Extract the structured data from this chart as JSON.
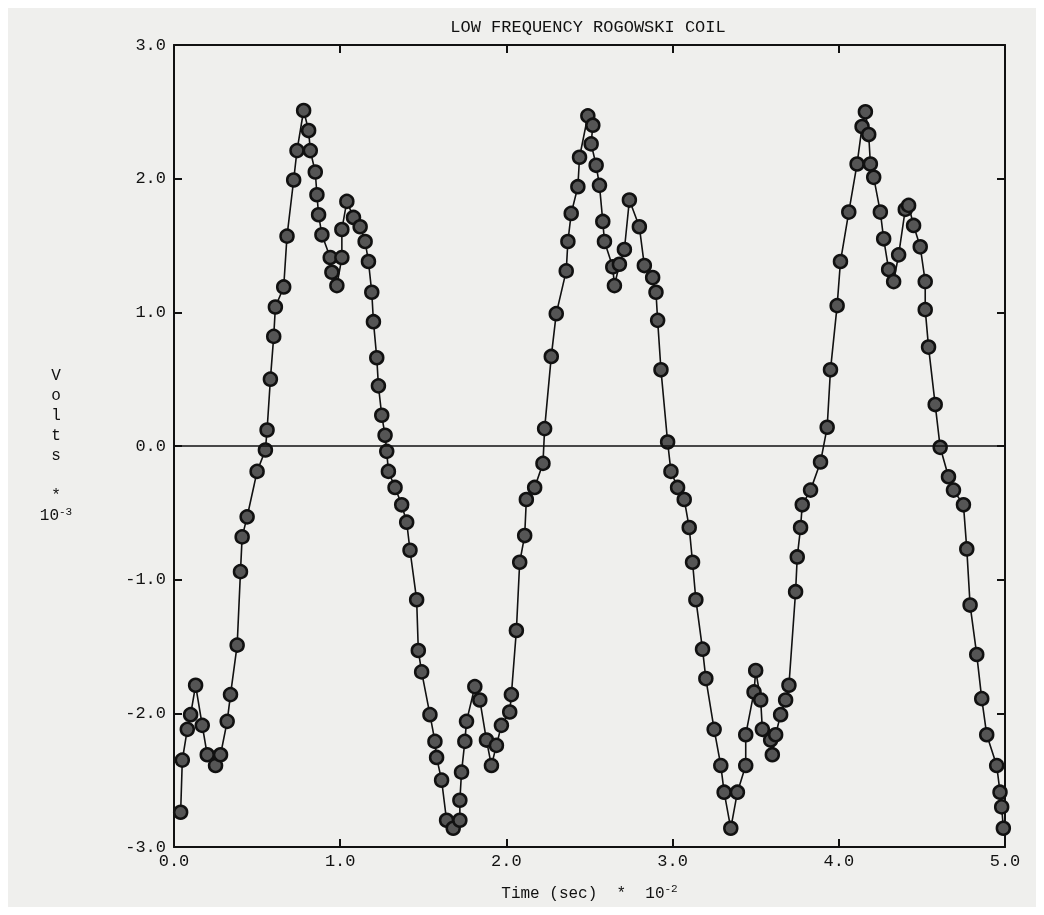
{
  "chart_data": {
    "type": "line",
    "title": "LOW FREQUENCY ROGOWSKI COIL",
    "xlabel": "Time (sec)  *  10$^{-2}$",
    "ylabel": "Volts  *  10$^{-3}$",
    "series": [
      {
        "color": "#111111",
        "x": [
          0.04,
          0.05,
          0.08,
          0.1,
          0.13,
          0.17,
          0.2,
          0.25,
          0.28,
          0.32,
          0.34,
          0.38,
          0.4,
          0.41,
          0.44,
          0.5,
          0.55,
          0.56,
          0.58,
          0.6,
          0.61,
          0.66,
          0.68,
          0.72,
          0.74,
          0.78,
          0.81,
          0.82,
          0.85,
          0.86,
          0.87,
          0.89,
          0.94,
          0.95,
          0.98,
          1.01,
          1.01,
          1.04,
          1.08,
          1.12,
          1.15,
          1.17,
          1.19,
          1.2,
          1.22,
          1.23,
          1.25,
          1.27,
          1.28,
          1.29,
          1.33,
          1.37,
          1.4,
          1.42,
          1.46,
          1.47,
          1.49,
          1.54,
          1.57,
          1.58,
          1.61,
          1.64,
          1.68,
          1.72,
          1.72,
          1.73,
          1.75,
          1.76,
          1.81,
          1.84,
          1.88,
          1.91,
          1.94,
          1.97,
          2.02,
          2.03,
          2.06,
          2.08,
          2.11,
          2.12,
          2.17,
          2.22,
          2.23,
          2.27,
          2.3,
          2.36,
          2.37,
          2.39,
          2.43,
          2.44,
          2.49,
          2.52,
          2.51,
          2.54,
          2.56,
          2.58,
          2.59,
          2.64,
          2.65,
          2.68,
          2.71,
          2.74,
          2.8,
          2.83,
          2.88,
          2.9,
          2.91,
          2.93,
          2.97,
          2.99,
          3.03,
          3.07,
          3.1,
          3.12,
          3.14,
          3.18,
          3.2,
          3.25,
          3.29,
          3.31,
          3.35,
          3.39,
          3.44,
          3.44,
          3.49,
          3.5,
          3.53,
          3.54,
          3.59,
          3.6,
          3.62,
          3.65,
          3.68,
          3.7,
          3.74,
          3.75,
          3.77,
          3.78,
          3.83,
          3.89,
          3.93,
          3.95,
          3.99,
          4.01,
          4.06,
          4.11,
          4.14,
          4.16,
          4.18,
          4.19,
          4.21,
          4.25,
          4.27,
          4.3,
          4.33,
          4.36,
          4.4,
          4.42,
          4.45,
          4.49,
          4.52,
          4.52,
          4.54,
          4.58,
          4.61,
          4.66,
          4.69,
          4.75,
          4.77,
          4.79,
          4.83,
          4.86,
          4.89,
          4.95,
          4.97,
          4.98,
          4.99
        ],
        "values": [
          -2.74,
          -2.35,
          -2.12,
          -2.01,
          -1.79,
          -2.09,
          -2.31,
          -2.39,
          -2.31,
          -2.06,
          -1.86,
          -1.49,
          -0.94,
          -0.68,
          -0.53,
          -0.19,
          -0.03,
          0.12,
          0.5,
          0.82,
          1.04,
          1.19,
          1.57,
          1.99,
          2.21,
          2.51,
          2.36,
          2.21,
          2.05,
          1.88,
          1.73,
          1.58,
          1.41,
          1.3,
          1.2,
          1.41,
          1.62,
          1.83,
          1.71,
          1.64,
          1.53,
          1.38,
          1.15,
          0.93,
          0.66,
          0.45,
          0.23,
          0.08,
          -0.04,
          -0.19,
          -0.31,
          -0.44,
          -0.57,
          -0.78,
          -1.15,
          -1.53,
          -1.69,
          -2.01,
          -2.21,
          -2.33,
          -2.5,
          -2.8,
          -2.86,
          -2.8,
          -2.65,
          -2.44,
          -2.21,
          -2.06,
          -1.8,
          -1.9,
          -2.2,
          -2.39,
          -2.24,
          -2.09,
          -1.99,
          -1.86,
          -1.38,
          -0.87,
          -0.67,
          -0.4,
          -0.31,
          -0.13,
          0.13,
          0.67,
          0.99,
          1.31,
          1.53,
          1.74,
          1.94,
          2.16,
          2.47,
          2.4,
          2.26,
          2.1,
          1.95,
          1.68,
          1.53,
          1.34,
          1.2,
          1.36,
          1.47,
          1.84,
          1.64,
          1.35,
          1.26,
          1.15,
          0.94,
          0.57,
          0.03,
          -0.19,
          -0.31,
          -0.4,
          -0.61,
          -0.87,
          -1.15,
          -1.52,
          -1.74,
          -2.12,
          -2.39,
          -2.59,
          -2.86,
          -2.59,
          -2.39,
          -2.16,
          -1.84,
          -1.68,
          -1.9,
          -2.12,
          -2.2,
          -2.31,
          -2.16,
          -2.01,
          -1.9,
          -1.79,
          -1.09,
          -0.83,
          -0.61,
          -0.44,
          -0.33,
          -0.12,
          0.14,
          0.57,
          1.05,
          1.38,
          1.75,
          2.11,
          2.39,
          2.5,
          2.33,
          2.11,
          2.01,
          1.75,
          1.55,
          1.32,
          1.23,
          1.43,
          1.77,
          1.8,
          1.65,
          1.49,
          1.23,
          1.02,
          0.74,
          0.31,
          -0.01,
          -0.23,
          -0.33,
          -0.44,
          -0.77,
          -1.19,
          -1.56,
          -1.89,
          -2.16,
          -2.39,
          -2.59,
          -2.7,
          -2.86
        ]
      }
    ],
    "xlim": [
      0,
      5
    ],
    "xticks": [
      {
        "value": 0,
        "label": "0.0"
      },
      {
        "value": 1,
        "label": "1.0"
      },
      {
        "value": 2,
        "label": "2.0"
      },
      {
        "value": 3,
        "label": "3.0"
      },
      {
        "value": 4,
        "label": "4.0"
      },
      {
        "value": 5,
        "label": "5.0"
      }
    ],
    "ylim": [
      -3,
      3
    ],
    "yticks": [
      {
        "value": -3,
        "label": "-3.0"
      },
      {
        "value": -2,
        "label": "-2.0"
      },
      {
        "value": -1,
        "label": "-1.0"
      },
      {
        "value": 0,
        "label": "0.0"
      },
      {
        "value": 1,
        "label": "1.0"
      },
      {
        "value": 2,
        "label": "2.0"
      },
      {
        "value": 3,
        "label": "3.0"
      }
    ],
    "ref_lines": [
      {
        "axis": "y",
        "value": 0,
        "color": "#111111"
      }
    ],
    "grid": false,
    "marker": "circle",
    "line_style": "solid"
  }
}
